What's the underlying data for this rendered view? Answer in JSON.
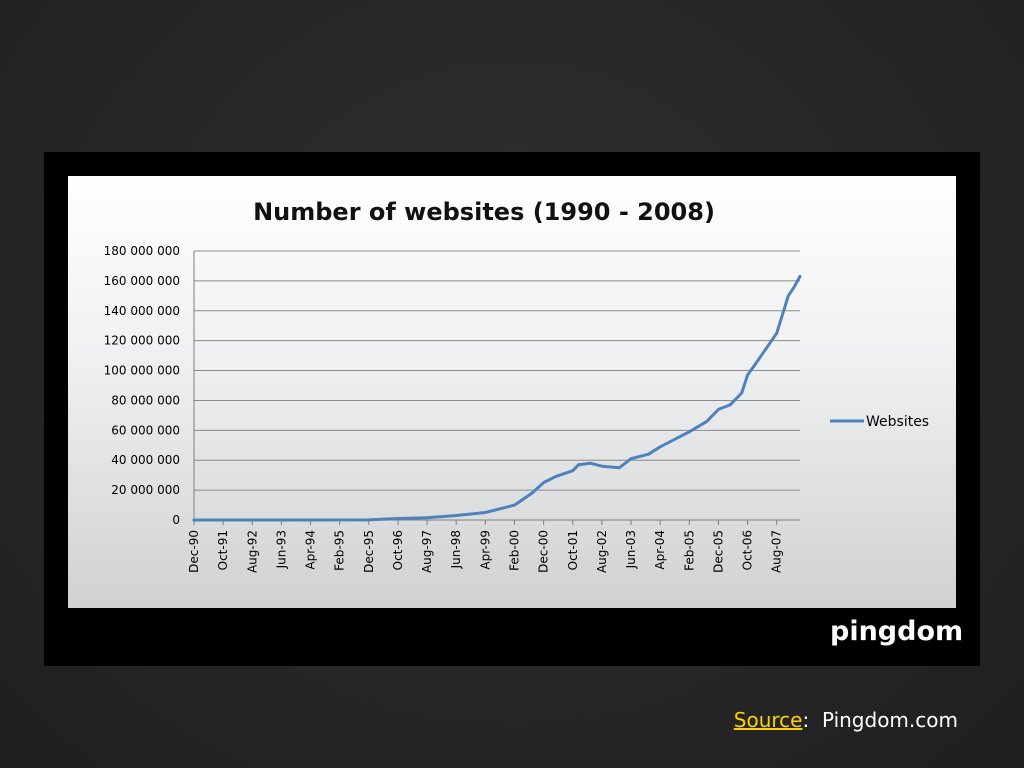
{
  "chart_data": {
    "type": "line",
    "title": "Number of websites (1990 - 2008)",
    "xlabel": "",
    "ylabel": "",
    "ylim": [
      0,
      180000000
    ],
    "yticks": [
      0,
      20000000,
      40000000,
      60000000,
      80000000,
      100000000,
      120000000,
      140000000,
      160000000,
      180000000
    ],
    "ytick_labels": [
      "0",
      "20 000 000",
      "40 000 000",
      "60 000 000",
      "80 000 000",
      "100 000 000",
      "120 000 000",
      "140 000 000",
      "160 000 000",
      "180 000 000"
    ],
    "xtick_labels": [
      "Dec-90",
      "Oct-91",
      "Aug-92",
      "Jun-93",
      "Apr-94",
      "Feb-95",
      "Dec-95",
      "Oct-96",
      "Aug-97",
      "Jun-98",
      "Apr-99",
      "Feb-00",
      "Dec-00",
      "Oct-01",
      "Aug-02",
      "Jun-03",
      "Apr-04",
      "Feb-05",
      "Dec-05",
      "Oct-06",
      "Aug-07"
    ],
    "xlim": [
      "Dec-90",
      "Apr-08"
    ],
    "grid": "horizontal",
    "legend": "right",
    "series": [
      {
        "name": "Websites",
        "color": "#4f81bd",
        "points": [
          [
            "Dec-90",
            0
          ],
          [
            "Jun-93",
            0
          ],
          [
            "Dec-95",
            100000
          ],
          [
            "Oct-96",
            1000000
          ],
          [
            "Aug-97",
            1500000
          ],
          [
            "Jun-98",
            3000000
          ],
          [
            "Apr-99",
            5000000
          ],
          [
            "Feb-00",
            10000000
          ],
          [
            "Aug-00",
            18000000
          ],
          [
            "Dec-00",
            25000000
          ],
          [
            "Apr-01",
            29000000
          ],
          [
            "Oct-01",
            33000000
          ],
          [
            "Dec-01",
            37000000
          ],
          [
            "Apr-02",
            38000000
          ],
          [
            "Aug-02",
            36000000
          ],
          [
            "Feb-03",
            35000000
          ],
          [
            "Jun-03",
            41000000
          ],
          [
            "Dec-03",
            44000000
          ],
          [
            "Apr-04",
            49000000
          ],
          [
            "Oct-04",
            55000000
          ],
          [
            "Feb-05",
            59000000
          ],
          [
            "Aug-05",
            66000000
          ],
          [
            "Dec-05",
            74000000
          ],
          [
            "Apr-06",
            77000000
          ],
          [
            "Aug-06",
            85000000
          ],
          [
            "Oct-06",
            97000000
          ],
          [
            "Feb-07",
            108000000
          ],
          [
            "Aug-07",
            125000000
          ],
          [
            "Dec-07",
            150000000
          ],
          [
            "Feb-08",
            156000000
          ],
          [
            "Apr-08",
            163000000
          ]
        ]
      }
    ]
  },
  "logo_text": "pingdom",
  "source": {
    "label": "Source",
    "separator": ":",
    "value": "Pingdom.com"
  }
}
